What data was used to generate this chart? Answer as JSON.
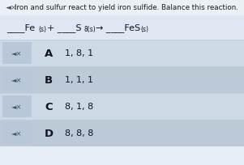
{
  "title": "Iron and sulfur react to yield iron sulfide. Balance this reaction.",
  "bg_color_top": "#e8eef5",
  "bg_color_main": "#dce8f0",
  "row_colors": [
    "#cdd9e4",
    "#bccad8",
    "#cdd9e4",
    "#bccad8"
  ],
  "icon_bg": "#b8c8d8",
  "text_color": "#1a1a2e",
  "title_color": "#1a1a2e",
  "options": [
    {
      "letter": "A",
      "text": "1, 8, 1"
    },
    {
      "letter": "B",
      "text": "1, 1, 1"
    },
    {
      "letter": "C",
      "text": "8, 1, 8"
    },
    {
      "letter": "D",
      "text": "8, 8, 8"
    }
  ],
  "eq_blanks": "____",
  "eq_fe": "Fe",
  "eq_fe_sub": "(s)",
  "eq_s": "S",
  "eq_s_sub": "8(s)",
  "eq_fes": "FeS",
  "eq_fes_sub": "(s)",
  "eq_arrow": "→"
}
